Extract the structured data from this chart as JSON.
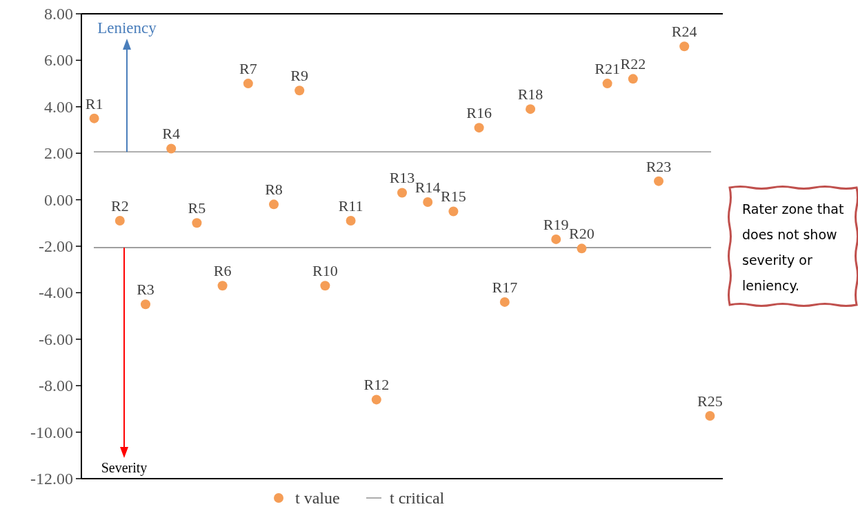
{
  "chart_data": {
    "type": "scatter",
    "categories": [
      "R1",
      "R2",
      "R3",
      "R4",
      "R5",
      "R6",
      "R7",
      "R8",
      "R9",
      "R10",
      "R11",
      "R12",
      "R13",
      "R14",
      "R15",
      "R16",
      "R17",
      "R18",
      "R19",
      "R20",
      "R21",
      "R22",
      "R23",
      "R24",
      "R25"
    ],
    "series": [
      {
        "name": "t value",
        "color": "#f59d56",
        "values": [
          3.5,
          -0.9,
          -4.5,
          2.2,
          -1.0,
          -3.7,
          5.0,
          -0.2,
          4.7,
          -3.7,
          -0.9,
          -8.6,
          0.3,
          -0.1,
          -0.5,
          3.1,
          -4.4,
          3.9,
          -1.7,
          -2.1,
          5.0,
          5.2,
          0.8,
          6.6,
          -9.3
        ]
      }
    ],
    "ylim": [
      -12,
      8
    ],
    "yticks": [
      {
        "value": -12,
        "label": "-12.00"
      },
      {
        "value": -10,
        "label": "-10.00"
      },
      {
        "value": -8,
        "label": "-8.00"
      },
      {
        "value": -6,
        "label": "-6.00"
      },
      {
        "value": -4,
        "label": "-4.00"
      },
      {
        "value": -2,
        "label": "-2.00"
      },
      {
        "value": 0,
        "label": "0.00"
      },
      {
        "value": 2,
        "label": "2.00"
      },
      {
        "value": 4,
        "label": "4.00"
      },
      {
        "value": 6,
        "label": "6.00"
      },
      {
        "value": 8,
        "label": "8.00"
      }
    ],
    "ref_lines": [
      {
        "axis": "y",
        "value": 2.06,
        "label": "t critical",
        "color": "#7f7f7f"
      },
      {
        "axis": "y",
        "value": -2.06,
        "color": "#7f7f7f"
      }
    ],
    "annotations": [
      {
        "text": "Leniency",
        "y": 2.06
      },
      {
        "text": "Severity",
        "y": -2.06
      },
      "Rater zone that does not show severity or leniency."
    ],
    "marker": "circle",
    "grid": false,
    "legend": "bottom",
    "tick_labels": "y"
  }
}
